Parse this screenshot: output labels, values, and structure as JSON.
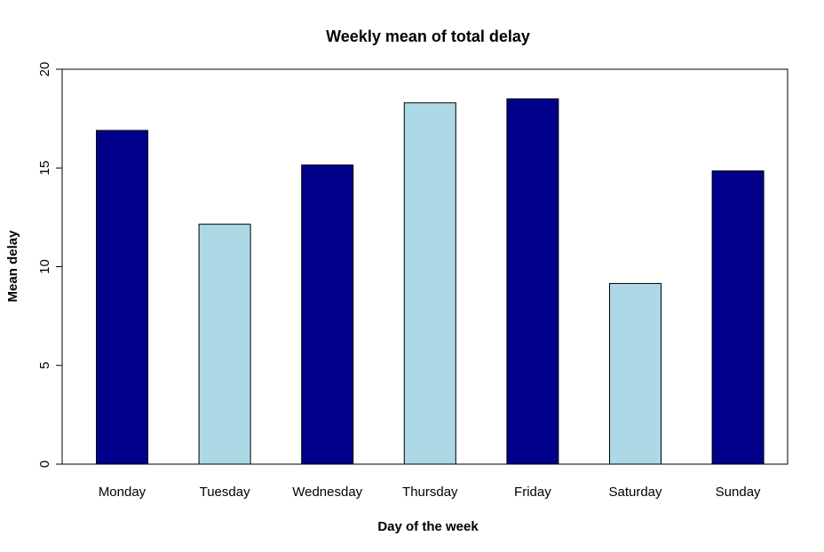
{
  "chart_data": {
    "type": "bar",
    "title": "Weekly mean of total delay",
    "xlabel": "Day of the week",
    "ylabel": "Mean delay",
    "categories": [
      "Monday",
      "Tuesday",
      "Wednesday",
      "Thursday",
      "Friday",
      "Saturday",
      "Sunday"
    ],
    "values": [
      16.9,
      12.15,
      15.15,
      18.3,
      18.5,
      9.15,
      14.85
    ],
    "bar_colors": [
      "#00008b",
      "#add8e6",
      "#00008b",
      "#add8e6",
      "#00008b",
      "#add8e6",
      "#00008b"
    ],
    "ylim": [
      0,
      20
    ],
    "yticks": [
      0,
      5,
      10,
      15,
      20
    ],
    "grid": false,
    "legend": false
  }
}
